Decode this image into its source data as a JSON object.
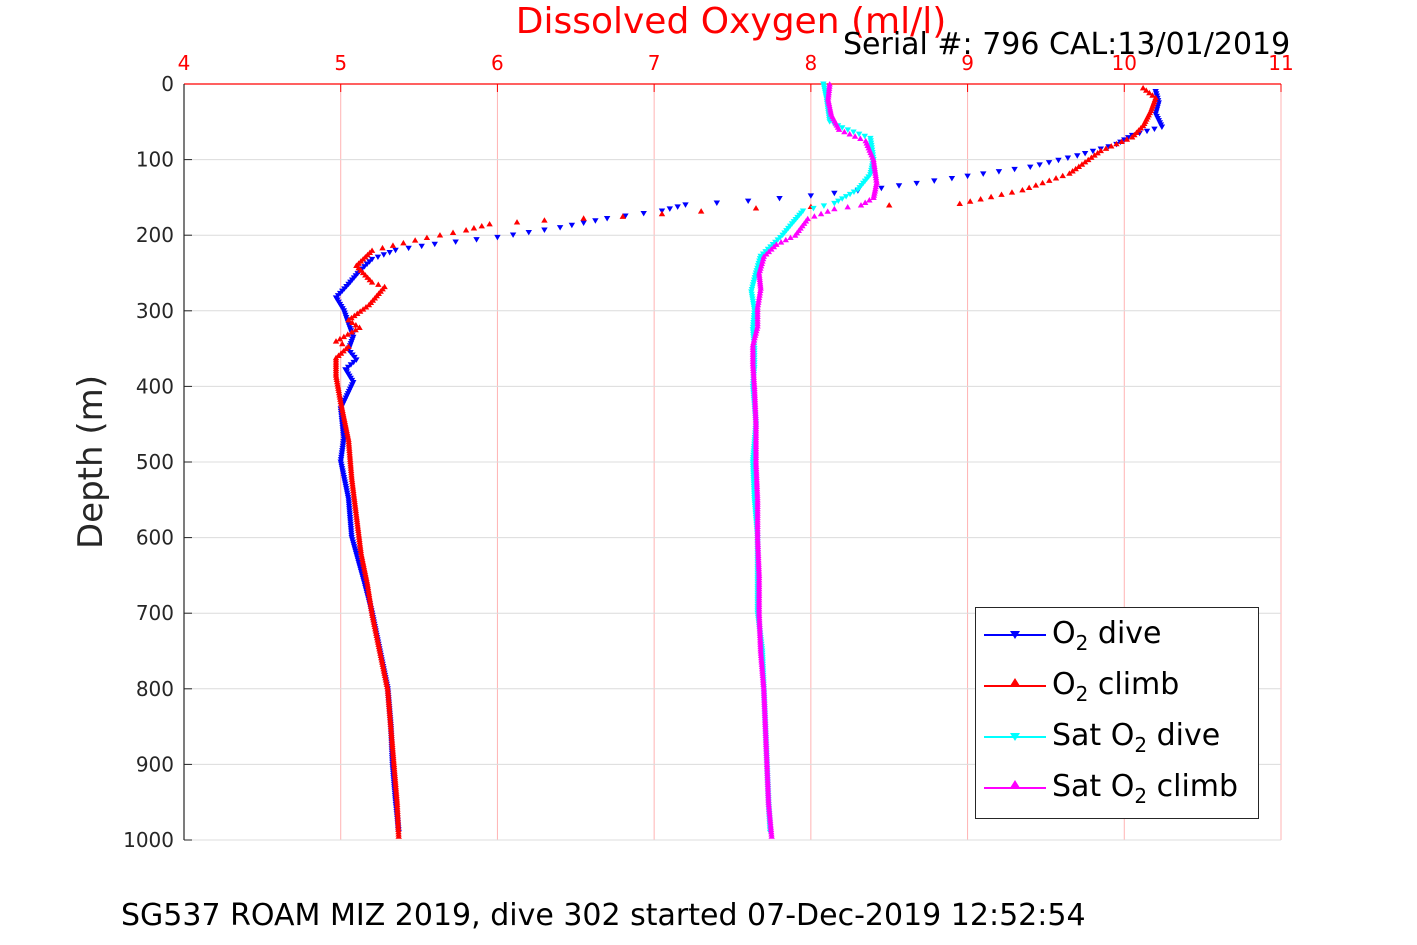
{
  "chart_data": {
    "type": "scatter",
    "title": "Dissolved Oxygen (ml/l)",
    "subtitle": "Serial #: 796  CAL:13/01/2019",
    "xlabel": "",
    "ylabel": "Depth (m)",
    "footer": "SG537 ROAM MIZ 2019, dive 302 started 07-Dec-2019 12:52:54",
    "xlim": [
      4,
      11
    ],
    "ylim": [
      1000,
      0
    ],
    "x_ticks": [
      4,
      5,
      6,
      7,
      8,
      9,
      10,
      11
    ],
    "y_ticks": [
      0,
      100,
      200,
      300,
      400,
      500,
      600,
      700,
      800,
      900,
      1000
    ],
    "x_tick_color": "#ff0000",
    "grid": true,
    "legend_position": "bottom-right",
    "series": [
      {
        "name": "O2 dive",
        "color": "#0000ff",
        "marker": "triangle-down",
        "points": [
          [
            10.2,
            10
          ],
          [
            10.22,
            25
          ],
          [
            10.2,
            40
          ],
          [
            10.24,
            57
          ],
          [
            10.05,
            68
          ],
          [
            9.95,
            80
          ],
          [
            9.7,
            95
          ],
          [
            9.4,
            110
          ],
          [
            8.9,
            125
          ],
          [
            8.45,
            138
          ],
          [
            8.0,
            148
          ],
          [
            7.6,
            155
          ],
          [
            7.2,
            160
          ],
          [
            7.05,
            168
          ],
          [
            6.7,
            178
          ],
          [
            6.4,
            190
          ],
          [
            6.0,
            203
          ],
          [
            5.6,
            212
          ],
          [
            5.35,
            220
          ],
          [
            5.2,
            232
          ],
          [
            5.12,
            248
          ],
          [
            5.05,
            265
          ],
          [
            4.97,
            283
          ],
          [
            5.02,
            300
          ],
          [
            5.05,
            318
          ],
          [
            5.08,
            335
          ],
          [
            5.05,
            352
          ],
          [
            5.1,
            365
          ],
          [
            5.03,
            378
          ],
          [
            5.08,
            395
          ],
          [
            5.0,
            430
          ],
          [
            5.02,
            470
          ],
          [
            5.0,
            500
          ],
          [
            5.05,
            550
          ],
          [
            5.07,
            600
          ],
          [
            5.15,
            660
          ],
          [
            5.2,
            700
          ],
          [
            5.25,
            750
          ],
          [
            5.3,
            800
          ],
          [
            5.32,
            850
          ],
          [
            5.33,
            900
          ],
          [
            5.35,
            950
          ],
          [
            5.37,
            990
          ]
        ]
      },
      {
        "name": "O2 climb",
        "color": "#ff0000",
        "marker": "triangle-up",
        "points": [
          [
            10.12,
            5
          ],
          [
            10.2,
            18
          ],
          [
            10.17,
            35
          ],
          [
            10.12,
            55
          ],
          [
            10.05,
            70
          ],
          [
            9.85,
            88
          ],
          [
            9.65,
            118
          ],
          [
            9.35,
            140
          ],
          [
            8.95,
            158
          ],
          [
            8.5,
            160
          ],
          [
            8.0,
            162
          ],
          [
            7.65,
            164
          ],
          [
            7.3,
            168
          ],
          [
            6.8,
            175
          ],
          [
            6.3,
            180
          ],
          [
            5.95,
            185
          ],
          [
            5.8,
            193
          ],
          [
            5.55,
            203
          ],
          [
            5.4,
            210
          ],
          [
            5.2,
            220
          ],
          [
            5.1,
            240
          ],
          [
            5.2,
            262
          ],
          [
            5.28,
            268
          ],
          [
            5.18,
            292
          ],
          [
            5.05,
            312
          ],
          [
            5.12,
            322
          ],
          [
            4.97,
            340
          ],
          [
            5.05,
            347
          ],
          [
            4.97,
            362
          ],
          [
            4.97,
            385
          ],
          [
            5.0,
            420
          ],
          [
            5.05,
            470
          ],
          [
            5.07,
            520
          ],
          [
            5.1,
            570
          ],
          [
            5.13,
            620
          ],
          [
            5.17,
            660
          ],
          [
            5.2,
            700
          ],
          [
            5.25,
            750
          ],
          [
            5.3,
            800
          ],
          [
            5.32,
            850
          ],
          [
            5.34,
            900
          ],
          [
            5.36,
            950
          ],
          [
            5.37,
            995
          ]
        ]
      },
      {
        "name": "Sat O2 dive",
        "color": "#00ffff",
        "marker": "triangle-down",
        "points": [
          [
            8.08,
            0
          ],
          [
            8.1,
            20
          ],
          [
            8.12,
            50
          ],
          [
            8.2,
            58
          ],
          [
            8.38,
            72
          ],
          [
            8.4,
            100
          ],
          [
            8.38,
            120
          ],
          [
            8.3,
            140
          ],
          [
            8.15,
            158
          ],
          [
            7.95,
            168
          ],
          [
            7.88,
            185
          ],
          [
            7.82,
            200
          ],
          [
            7.68,
            228
          ],
          [
            7.65,
            250
          ],
          [
            7.62,
            275
          ],
          [
            7.64,
            300
          ],
          [
            7.63,
            325
          ],
          [
            7.64,
            350
          ],
          [
            7.64,
            375
          ],
          [
            7.63,
            400
          ],
          [
            7.65,
            450
          ],
          [
            7.63,
            500
          ],
          [
            7.64,
            550
          ],
          [
            7.66,
            600
          ],
          [
            7.66,
            650
          ],
          [
            7.66,
            700
          ],
          [
            7.69,
            750
          ],
          [
            7.7,
            800
          ],
          [
            7.71,
            850
          ],
          [
            7.72,
            900
          ],
          [
            7.73,
            950
          ],
          [
            7.74,
            990
          ]
        ]
      },
      {
        "name": "Sat O2 climb",
        "color": "#ff00ff",
        "marker": "triangle-up",
        "points": [
          [
            8.12,
            0
          ],
          [
            8.11,
            20
          ],
          [
            8.13,
            40
          ],
          [
            8.18,
            60
          ],
          [
            8.35,
            75
          ],
          [
            8.4,
            100
          ],
          [
            8.42,
            130
          ],
          [
            8.4,
            150
          ],
          [
            8.32,
            160
          ],
          [
            8.15,
            165
          ],
          [
            7.98,
            178
          ],
          [
            7.9,
            200
          ],
          [
            7.78,
            212
          ],
          [
            7.7,
            228
          ],
          [
            7.67,
            250
          ],
          [
            7.68,
            270
          ],
          [
            7.66,
            295
          ],
          [
            7.66,
            320
          ],
          [
            7.63,
            345
          ],
          [
            7.63,
            370
          ],
          [
            7.64,
            400
          ],
          [
            7.65,
            450
          ],
          [
            7.65,
            500
          ],
          [
            7.66,
            550
          ],
          [
            7.66,
            600
          ],
          [
            7.67,
            650
          ],
          [
            7.67,
            700
          ],
          [
            7.68,
            750
          ],
          [
            7.7,
            800
          ],
          [
            7.71,
            850
          ],
          [
            7.72,
            900
          ],
          [
            7.73,
            950
          ],
          [
            7.75,
            995
          ]
        ]
      }
    ]
  }
}
